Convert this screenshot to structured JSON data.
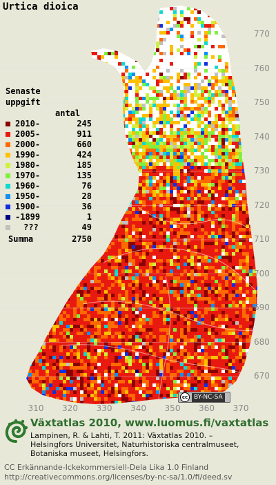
{
  "species": "Urtica dioica",
  "legend": {
    "title_line1": "Senaste",
    "title_line2": "uppgift",
    "count_header": "antal",
    "rows": [
      {
        "label": "2010-",
        "count": "245",
        "color": "#8b0000"
      },
      {
        "label": "2005-",
        "count": "911",
        "color": "#e81a10"
      },
      {
        "label": "2000-",
        "count": "660",
        "color": "#ff6a00"
      },
      {
        "label": "1990-",
        "count": "424",
        "color": "#ffc000"
      },
      {
        "label": "1980-",
        "count": "185",
        "color": "#d0f040"
      },
      {
        "label": "1970-",
        "count": "135",
        "color": "#80f040"
      },
      {
        "label": "1960-",
        "count": "76",
        "color": "#10d8d0"
      },
      {
        "label": "1950-",
        "count": "28",
        "color": "#1090f0"
      },
      {
        "label": "1900-",
        "count": "36",
        "color": "#1030e0"
      },
      {
        "label": "-1899",
        "count": "1",
        "color": "#000080"
      },
      {
        "label": "???",
        "count": "49",
        "color": "#c0c0c0"
      }
    ],
    "sum_label": "Summa",
    "sum_count": "2750"
  },
  "axes": {
    "y_ticks": [
      "770",
      "760",
      "750",
      "740",
      "730",
      "720",
      "710",
      "700",
      "690",
      "680",
      "670"
    ],
    "x_ticks": [
      "310",
      "320",
      "330",
      "340",
      "350",
      "360",
      "370"
    ]
  },
  "cc_badge": {
    "mark": "cc",
    "text": "BY-NC-SA"
  },
  "atlas_title": "Växtatlas 2010, www.luomus.fi/vaxtatlas",
  "citation_lines": [
    "Lampinen, R. & Lahti, T. 2011: Växtatlas 2010. –",
    "Helsingfors Universitet, Naturhistoriska centralmuseet,",
    "Botaniska museet, Helsingfors."
  ],
  "license_lines": [
    "CC Erkännande-Ickekommersiell-Dela Lika 1.0 Finland",
    "http://creativecommons.org/licenses/by-nc-sa/1.0/fi/deed.sv"
  ],
  "colors": {
    "background": "#e8e8d8",
    "land": "#ffffff",
    "atlas_title": "#2e6e2e",
    "logo": "#2e7a2e"
  },
  "icons": {
    "logo": "fern-spiral-icon",
    "cc": "creative-commons-icon"
  }
}
